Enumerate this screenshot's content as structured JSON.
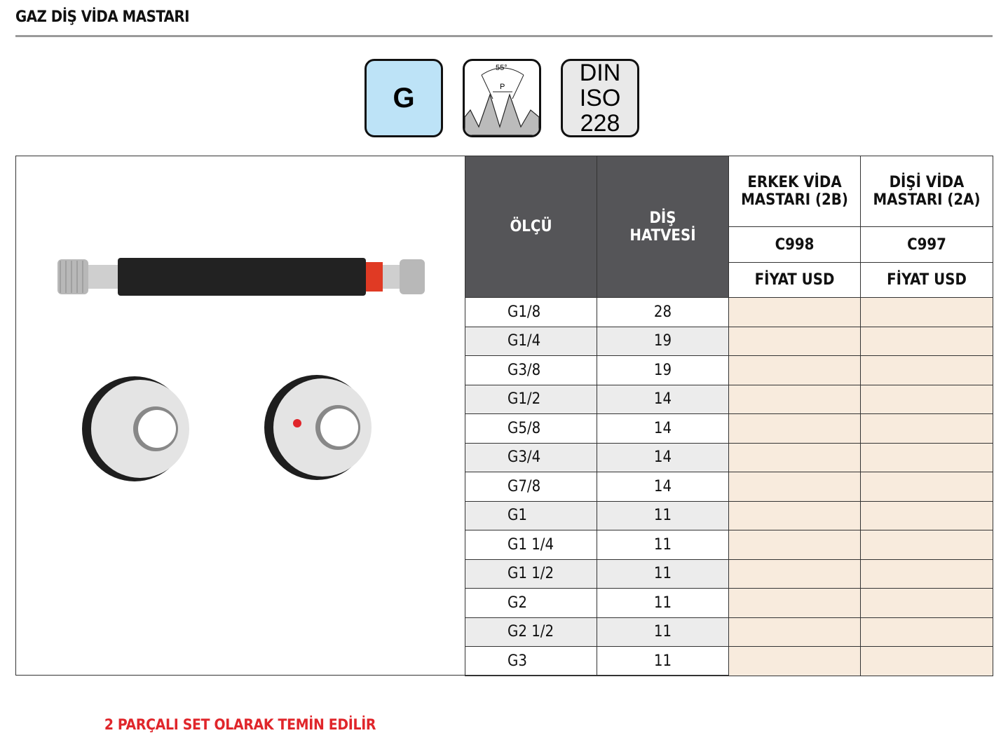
{
  "title": "GAZ DİŞ VİDA MASTARI",
  "icons": {
    "g": "G",
    "angle": "55°",
    "pitch": "P",
    "din": [
      "DIN",
      "ISO",
      "228"
    ]
  },
  "note": "2 PARÇALI SET OLARAK TEMİN EDİLİR",
  "table": {
    "headers": {
      "size": "ÖLÇÜ",
      "pitch_1": "DİŞ",
      "pitch_2": "HATVESİ",
      "male": "ERKEK VİDA MASTARI (2B)",
      "female": "DİŞİ VİDA MASTARI (2A)",
      "male_code": "C998",
      "female_code": "C997",
      "price": "FİYAT USD"
    },
    "rows": [
      {
        "size": "G1/8",
        "pitch": "28"
      },
      {
        "size": "G1/4",
        "pitch": "19"
      },
      {
        "size": "G3/8",
        "pitch": "19"
      },
      {
        "size": "G1/2",
        "pitch": "14"
      },
      {
        "size": "G5/8",
        "pitch": "14"
      },
      {
        "size": "G3/4",
        "pitch": "14"
      },
      {
        "size": "G7/8",
        "pitch": "14"
      },
      {
        "size": "G1",
        "pitch": "11"
      },
      {
        "size": "G1 1/4",
        "pitch": "11"
      },
      {
        "size": "G1 1/2",
        "pitch": "11"
      },
      {
        "size": "G2",
        "pitch": "11"
      },
      {
        "size": "G2 1/2",
        "pitch": "11"
      },
      {
        "size": "G3",
        "pitch": "11"
      }
    ]
  },
  "colors": {
    "header_dark": "#555558",
    "price_cell": "#f8ebdd",
    "accent_red": "#e0262b",
    "g_icon": "#bde3f7"
  }
}
